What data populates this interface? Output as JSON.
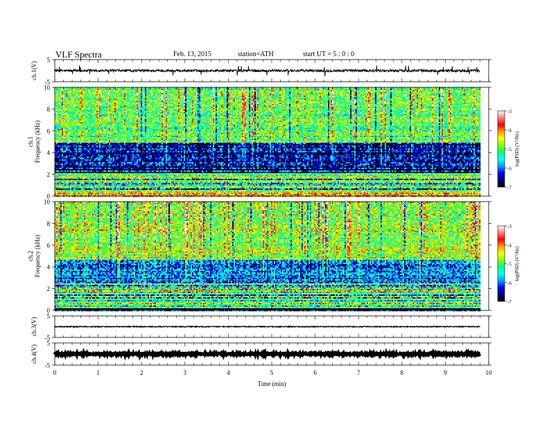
{
  "header": {
    "title": "VLF  Spectra",
    "date": "Feb. 13, 2015",
    "station": "station=ATH",
    "start": "start  UT  =   5  : 0  : 0"
  },
  "colors": {
    "colormap": [
      "#000000",
      "#000080",
      "#0000ff",
      "#00a0ff",
      "#00ffff",
      "#00ff80",
      "#80ff00",
      "#ffff00",
      "#ffa000",
      "#ff0000",
      "#ff8080",
      "#ffffff"
    ]
  },
  "chart_data": [
    {
      "type": "line",
      "panel": "ch1-waveform",
      "ylabel": "ch.1(V)",
      "ylim": [
        -5,
        5
      ],
      "yticks": [
        "5",
        "-5"
      ],
      "xlim": [
        0,
        10
      ],
      "mean_level": 0,
      "noise_amplitude": 0.6,
      "spike_amplitude": 2.5,
      "data_end_min": 9.8
    },
    {
      "type": "heatmap",
      "panel": "ch1-spectrogram",
      "ylabel": "ch.1\nFrequency  (kHz)",
      "ylim": [
        0,
        10
      ],
      "yticks": [
        "0",
        "2",
        "4",
        "6",
        "8",
        "10"
      ],
      "xlim": [
        0,
        10
      ],
      "data_end_min": 9.8,
      "colorbar": {
        "label": "log(PSD) (V²/Hz)",
        "range": [
          -7,
          -3
        ],
        "ticks": [
          "-3",
          "-4",
          "-5",
          "-6",
          "-7"
        ]
      },
      "bands": [
        {
          "freq_khz": [
            0,
            0.5
          ],
          "log_psd": -4.0
        },
        {
          "freq_khz": [
            0.5,
            2.2
          ],
          "log_psd": -5.3
        },
        {
          "freq_khz": [
            2.2,
            5.0
          ],
          "log_psd": -6.5
        },
        {
          "freq_khz": [
            5.0,
            10.0
          ],
          "log_psd": -5.0
        }
      ]
    },
    {
      "type": "heatmap",
      "panel": "ch2-spectrogram",
      "ylabel": "ch.2\nFrequency  (kHz)",
      "ylim": [
        0,
        10
      ],
      "yticks": [
        "0",
        "2",
        "4",
        "6",
        "8",
        "10"
      ],
      "xlim": [
        0,
        10
      ],
      "data_end_min": 9.8,
      "colorbar": {
        "label": "log(PSD) (V²/Hz)",
        "range": [
          -7,
          -3
        ],
        "ticks": [
          "-3",
          "-4",
          "-5",
          "-6",
          "-7"
        ]
      },
      "bands": [
        {
          "freq_khz": [
            0,
            0.3
          ],
          "log_psd": -6.5
        },
        {
          "freq_khz": [
            0.3,
            2.5
          ],
          "log_psd": -5.2
        },
        {
          "freq_khz": [
            2.5,
            4.7
          ],
          "log_psd": -6.0
        },
        {
          "freq_khz": [
            4.7,
            10.0
          ],
          "log_psd": -4.8
        }
      ]
    },
    {
      "type": "line",
      "panel": "ch3-waveform",
      "ylabel": "ch.3(V)",
      "ylim": [
        -5,
        5
      ],
      "yticks": [
        "5",
        "-5"
      ],
      "xlim": [
        0,
        10
      ],
      "mean_level": 0,
      "noise_amplitude": 0.2,
      "data_end_min": 9.8
    },
    {
      "type": "line",
      "panel": "ch4-waveform",
      "ylabel": "ch.4(V)",
      "ylim": [
        -5,
        5
      ],
      "yticks": [
        "5",
        "-5"
      ],
      "xlim": [
        0,
        10
      ],
      "mean_level": 0,
      "noise_amplitude": 0.3,
      "data_end_min": 9.8
    }
  ],
  "xaxis": {
    "label": "Time  (min)",
    "ticks": [
      "0",
      "1",
      "2",
      "3",
      "4",
      "5",
      "6",
      "7",
      "8",
      "9",
      "10"
    ]
  }
}
